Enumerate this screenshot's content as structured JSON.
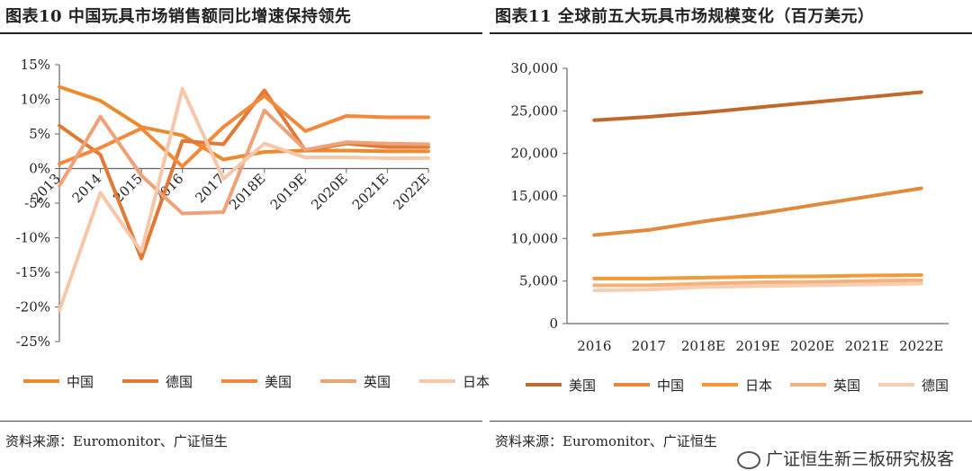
{
  "left": {
    "title": "图表10  中国玩具市场销售额同比增速保持领先",
    "source": "资料来源：Euromonitor、广证恒生",
    "chart_data": {
      "type": "line",
      "categories": [
        "2013",
        "2014",
        "2015",
        "2016",
        "2017",
        "2018E",
        "2019E",
        "2020E",
        "2021E",
        "2022E"
      ],
      "y_ticks": [
        "15%",
        "10%",
        "5%",
        "0%",
        "-5%",
        "-10%",
        "-15%",
        "-20%",
        "-25%"
      ],
      "ylim": [
        -25,
        15
      ],
      "legend_placement": "bottom",
      "series": [
        {
          "name": "中国",
          "color": "#ee8a2e",
          "values": [
            11.8,
            9.8,
            6,
            4.8,
            1.3,
            2.4,
            2.6,
            2.6,
            2.5,
            2.5
          ]
        },
        {
          "name": "德国",
          "color": "#e07a36",
          "values": [
            6.2,
            2,
            -13,
            4,
            3.5,
            11.3,
            2.6,
            3.6,
            3.1,
            3.1
          ]
        },
        {
          "name": "美国",
          "color": "#f3893a",
          "values": [
            0.7,
            3,
            5.8,
            0.3,
            6,
            10.5,
            5.4,
            7.6,
            7.4,
            7.4
          ]
        },
        {
          "name": "英国",
          "color": "#efa277",
          "values": [
            -2.5,
            7.5,
            -1,
            -6.5,
            -6.3,
            8.4,
            2.7,
            3.8,
            3.6,
            3.5
          ]
        },
        {
          "name": "日本",
          "color": "#f7c7a9",
          "values": [
            -20.5,
            -3.5,
            -12,
            11.5,
            -1.5,
            3.6,
            1.6,
            1.6,
            1.5,
            1.5
          ]
        }
      ]
    }
  },
  "right": {
    "title": "图表11  全球前五大玩具市场规模变化（百万美元）",
    "source": "资料来源：Euromonitor、广证恒生",
    "watermark": "广证恒生新三板研究极客",
    "chart_data": {
      "type": "line",
      "categories": [
        "2016",
        "2017",
        "2018E",
        "2019E",
        "2020E",
        "2021E",
        "2022E"
      ],
      "y_ticks": [
        "30,000",
        "25,000",
        "20,000",
        "15,000",
        "10,000",
        "5,000",
        "0"
      ],
      "ylim": [
        0,
        30000
      ],
      "legend_placement": "bottom",
      "series": [
        {
          "name": "美国",
          "color": "#bf6a2a",
          "values": [
            23900,
            24300,
            24800,
            25400,
            26000,
            26600,
            27200
          ]
        },
        {
          "name": "中国",
          "color": "#e08a3c",
          "values": [
            10400,
            11000,
            12000,
            12900,
            13900,
            14900,
            15900
          ]
        },
        {
          "name": "日本",
          "color": "#f29a3a",
          "values": [
            5300,
            5300,
            5400,
            5500,
            5550,
            5650,
            5700
          ]
        },
        {
          "name": "英国",
          "color": "#f5b07c",
          "values": [
            4500,
            4500,
            4700,
            4850,
            4900,
            5000,
            5100
          ]
        },
        {
          "name": "德国",
          "color": "#f8cdb0",
          "values": [
            3900,
            4000,
            4300,
            4400,
            4500,
            4600,
            4700
          ]
        }
      ]
    }
  }
}
